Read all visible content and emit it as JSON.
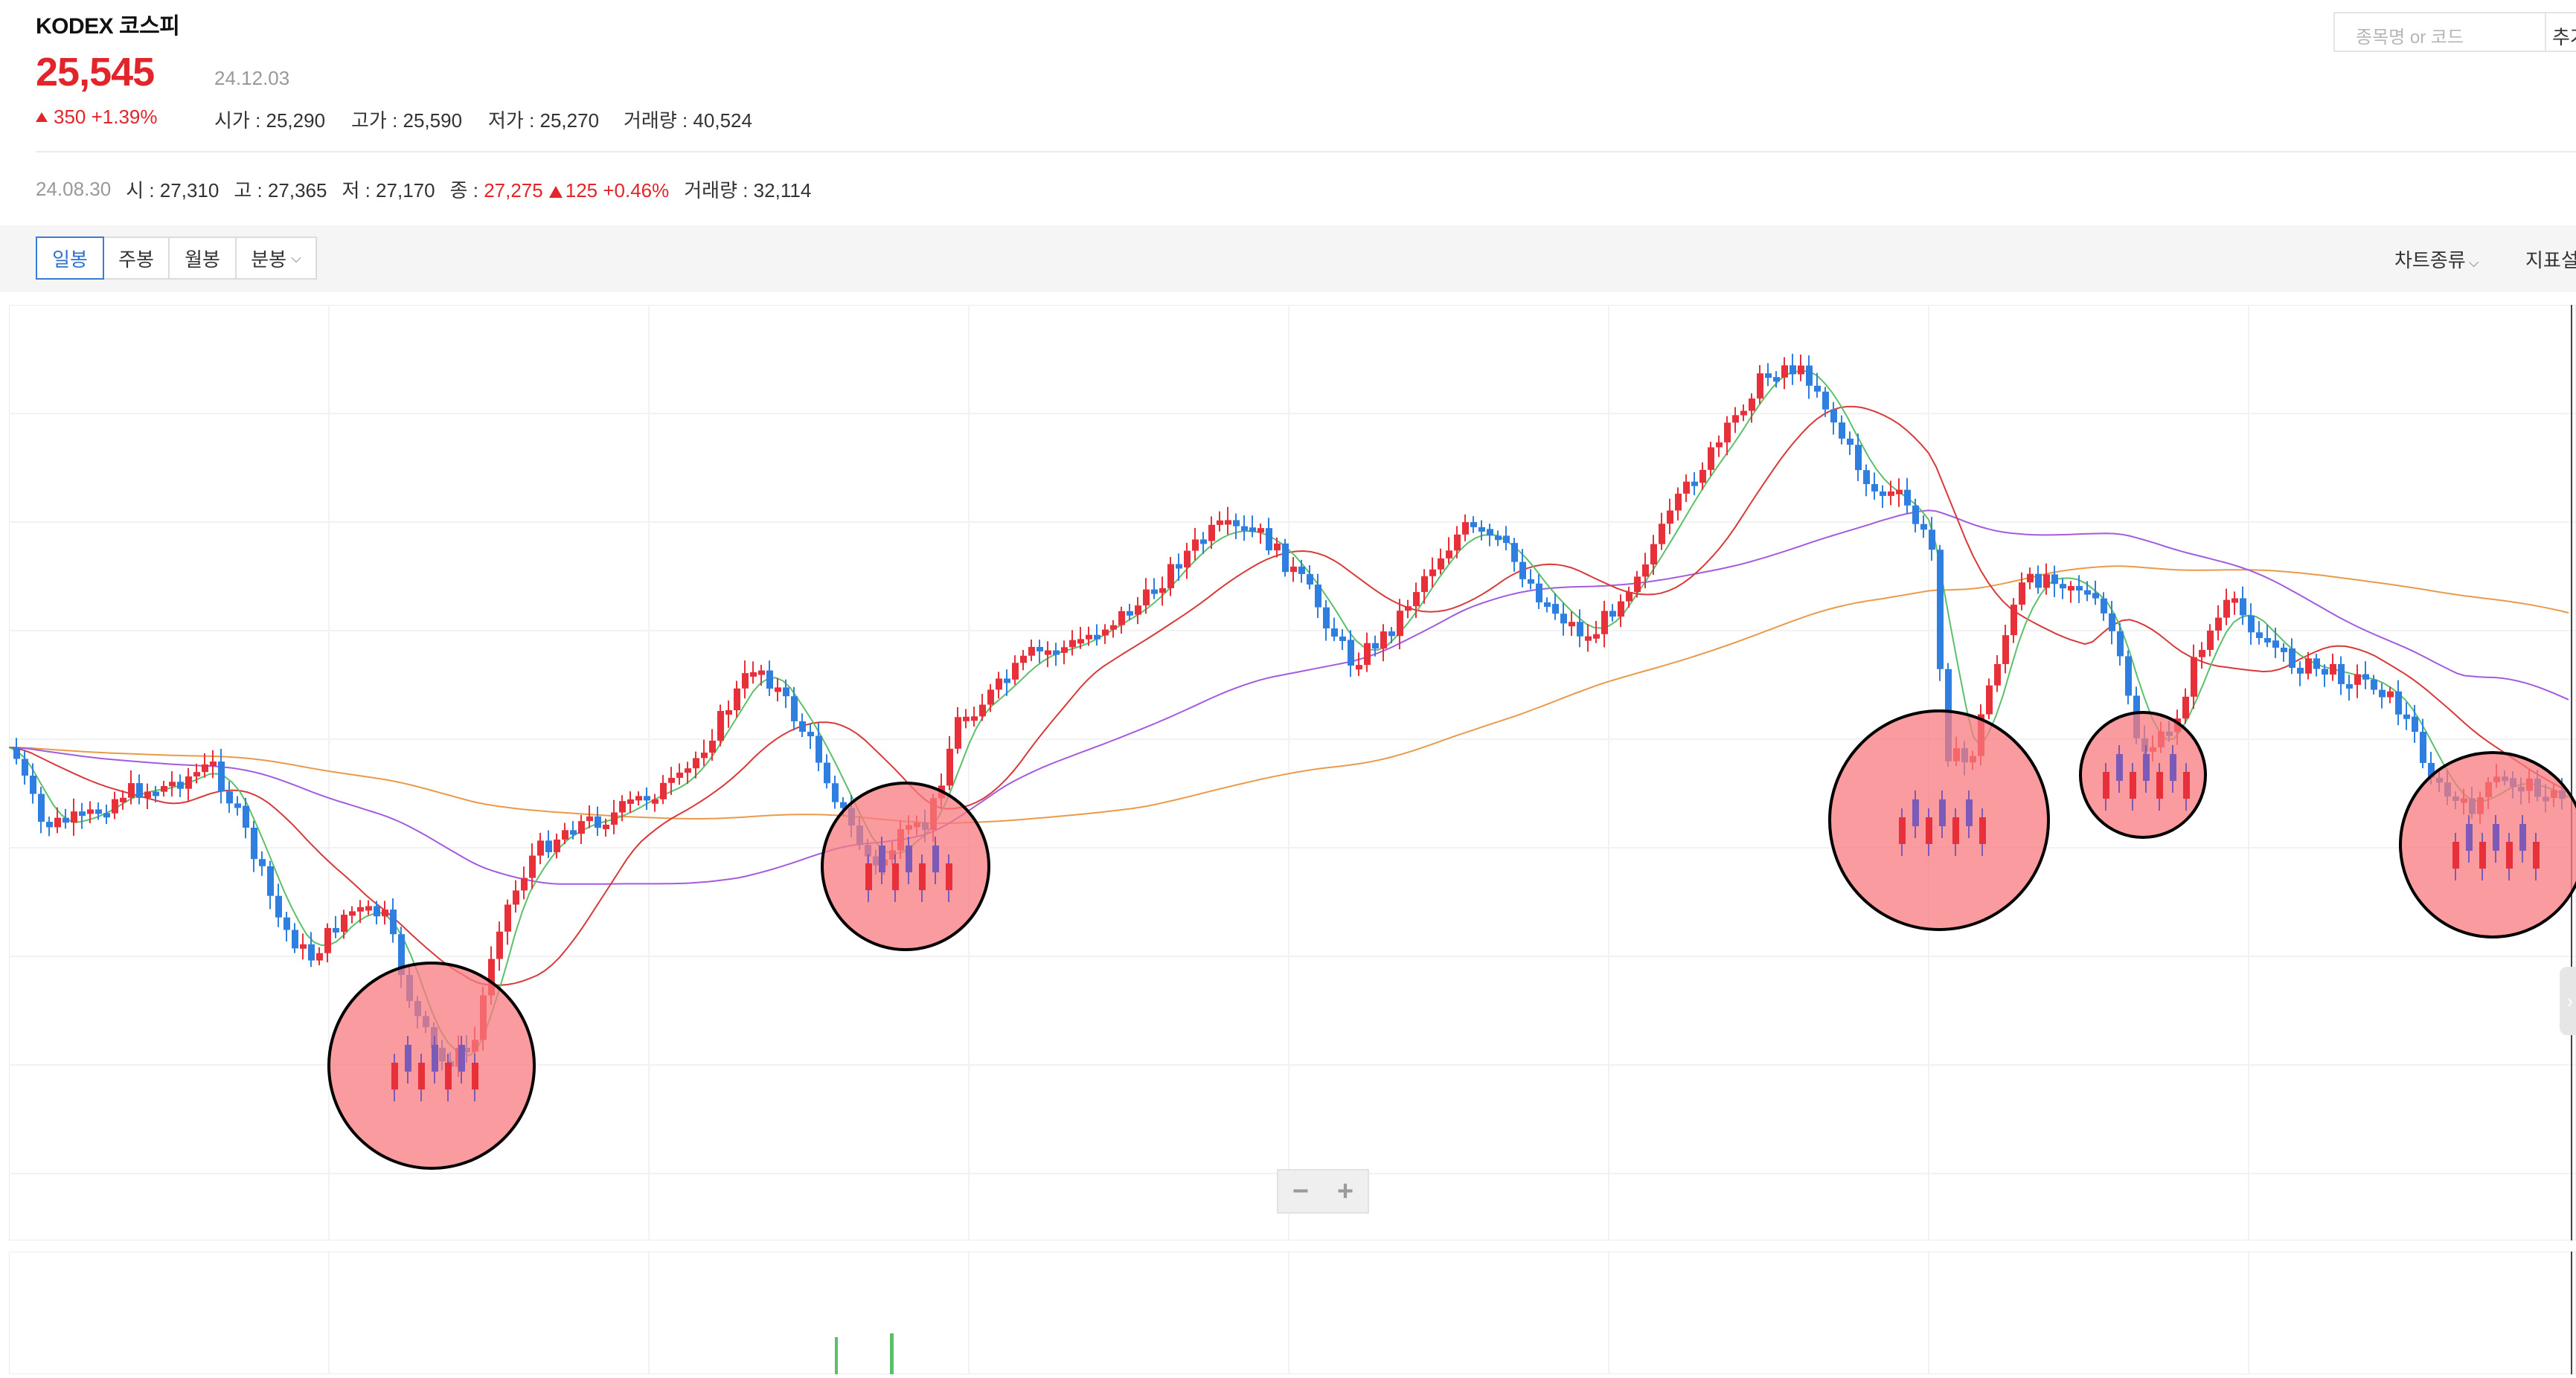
{
  "header": {
    "stock_name": "KODEX 코스피",
    "price": "25,545",
    "date": "24.12.03",
    "change": "350 +1.39%",
    "open": "시가 : 25,290",
    "high": "고가 : 25,590",
    "low": "저가 : 25,270",
    "volume": "거래량 : 40,524"
  },
  "search": {
    "placeholder": "종목명 or 코드",
    "button_label": "추가"
  },
  "prev_day": {
    "date": "24.08.30",
    "open": "시 : 27,310",
    "high": "고 : 27,365",
    "low": "저 : 27,170",
    "close_label": "종 :",
    "close": "27,275",
    "change": "125 +0.46%",
    "volume": "거래량 : 32,114"
  },
  "toolbar": {
    "tabs": [
      {
        "label": "일봉",
        "active": true
      },
      {
        "label": "주봉",
        "active": false
      },
      {
        "label": "월봉",
        "active": false
      },
      {
        "label": "분봉",
        "active": false
      }
    ],
    "chart_type_label": "차트종류",
    "indicator_label": "지표설정"
  },
  "zoom": {
    "minus": "−",
    "plus": "+"
  },
  "side_tab": {
    "icon": "chevron-right-icon",
    "glyph": "›"
  },
  "colors": {
    "up": "#e8303a",
    "down": "#2f7fe0",
    "ma5": "#5cc06a",
    "ma20": "#d83a3a",
    "ma60": "#a35be0",
    "ma120": "#e99a4a",
    "highlight": "#f7797f",
    "highlight_candle": "#7b5ab8"
  },
  "chart_data": {
    "type": "candlestick",
    "period": "daily",
    "last_bar": {
      "date": "24.12.03",
      "open": 25290,
      "high": 25590,
      "low": 25270,
      "close": 25545,
      "volume": 40524
    },
    "hover_bar": {
      "date": "24.08.30",
      "open": 27310,
      "high": 27365,
      "low": 27170,
      "close": 27275,
      "volume": 32114
    },
    "moving_averages": [
      "ma5",
      "ma20",
      "ma60",
      "ma120"
    ],
    "highlighted_regions": 5,
    "grid": true
  }
}
